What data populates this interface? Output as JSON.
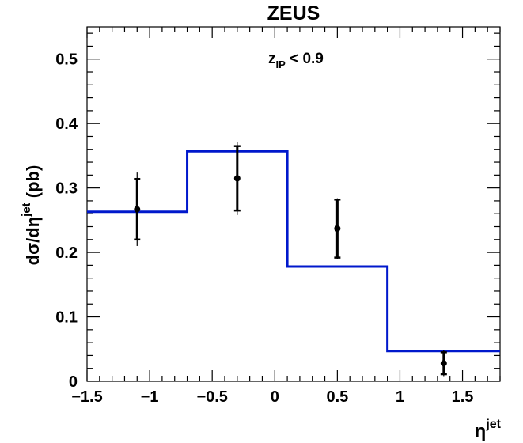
{
  "chart_data": {
    "type": "histogram",
    "title": "ZEUS",
    "annotation": {
      "main": "z",
      "sub": "IP",
      "rest": " < 0.9"
    },
    "xlabel": {
      "main": "η",
      "sup": "jet"
    },
    "ylabel": {
      "main": "dσ/dη",
      "sup": "jet",
      "unit": " (pb)"
    },
    "xlim": [
      -1.5,
      1.8
    ],
    "ylim": [
      0,
      0.55
    ],
    "x_ticks": [
      -1.5,
      -1,
      -0.5,
      0,
      0.5,
      1,
      1.5
    ],
    "x_tick_labels": [
      "−1.5",
      "−1",
      "−0.5",
      "0",
      "0.5",
      "1",
      "1.5"
    ],
    "y_ticks": [
      0,
      0.1,
      0.2,
      0.3,
      0.4,
      0.5
    ],
    "y_tick_labels": [
      "0",
      "0.1",
      "0.2",
      "0.3",
      "0.4",
      "0.5"
    ],
    "grid": false,
    "series": [
      {
        "kind": "step-histogram",
        "color": "#0018cc",
        "bin_edges": [
          -1.5,
          -0.7,
          0.1,
          0.9,
          1.8
        ],
        "values": [
          0.263,
          0.357,
          0.178,
          0.047
        ]
      },
      {
        "kind": "points-with-errors",
        "color": "#000000",
        "x": [
          -1.1,
          -0.3,
          0.5,
          1.35
        ],
        "y": [
          0.267,
          0.315,
          0.237,
          0.028
        ],
        "stat_err": [
          0.047,
          0.05,
          0.045,
          0.017
        ],
        "total_err": [
          0.057,
          0.057,
          0.047,
          0.02
        ]
      }
    ]
  }
}
